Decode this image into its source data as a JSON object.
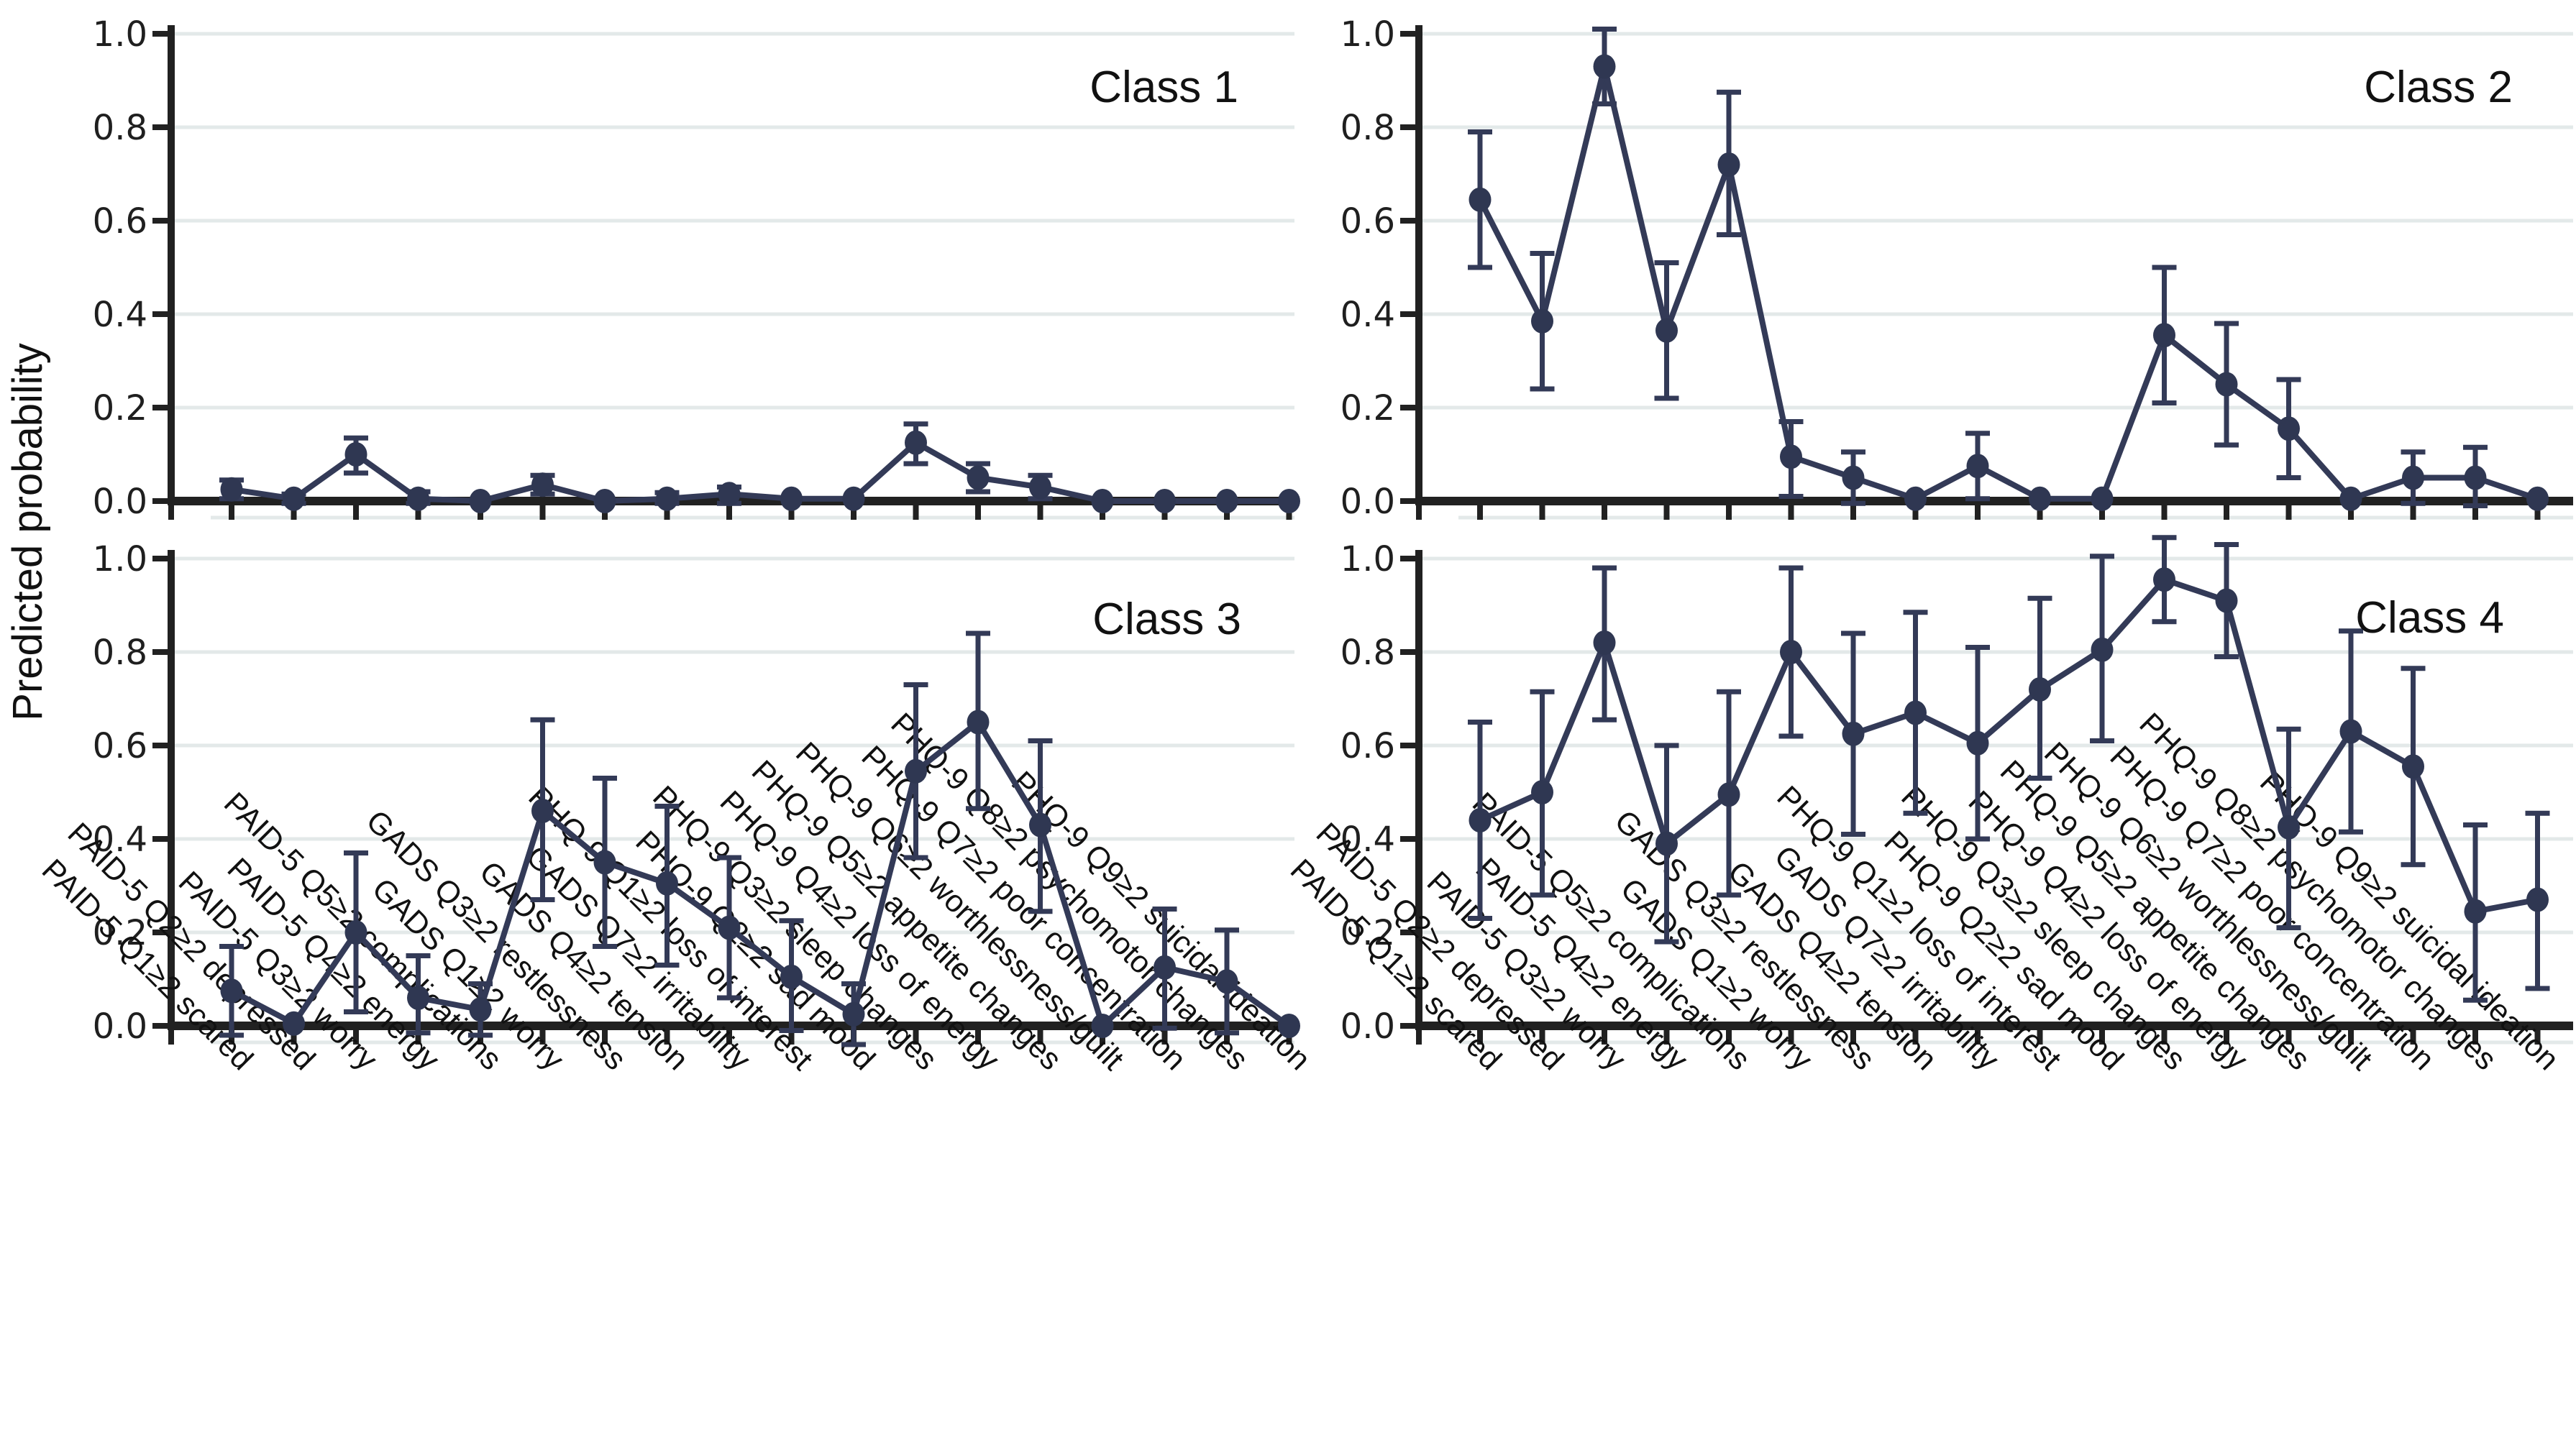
{
  "figure": {
    "ylabel": "Predicted probability",
    "panel_titles": [
      "Class 1",
      "Class 2",
      "Class 3",
      "Class 4"
    ]
  },
  "chart_data": {
    "type": "line",
    "subtype": "multi-panel point-and-errorbar profile plot",
    "title": "",
    "xlabel": "",
    "ylabel": "Predicted probability",
    "ylim": [
      0.0,
      1.0
    ],
    "ytick_labels": [
      "0.0",
      "0.2",
      "0.4",
      "0.6",
      "0.8",
      "1.0"
    ],
    "ytick_values": [
      0.0,
      0.2,
      0.4,
      0.6,
      0.8,
      1.0
    ],
    "grid": true,
    "legend": false,
    "layout_hints": {
      "panels_grid": "2x2",
      "x_tick_rotation": 45,
      "error_bars": true,
      "shared_y_label": true
    },
    "colors": {
      "line": "#333a57",
      "marker": "#2f3752",
      "grid": "#e3e9e9",
      "axis": "#212121",
      "text": "#111111"
    },
    "categories": [
      "PAID-5 Q1≥2 scared",
      "PAID-5 Q2≥2 depressed",
      "PAID-5 Q3≥2 worry",
      "PAID-5 Q4≥2 energy",
      "PAID-5 Q5≥2 complications",
      "GADS Q1≥2 worry",
      "GADS Q3≥2 restlessness",
      "GADS Q4≥2 tension",
      "GADS Q7≥2 irritability",
      "PHQ-9 Q1≥2 loss of interest",
      "PHQ-9 Q2≥2 sad mood",
      "PHQ-9 Q3≥2 sleep changes",
      "PHQ-9 Q4≥2 loss of energy",
      "PHQ-9 Q5≥2 appetite changes",
      "PHQ-9 Q6≥2 worthlessness/guilt",
      "PHQ-9 Q7≥2 poor concentration",
      "PHQ-9 Q8≥2 psychomotor changes",
      "PHQ-9 Q9≥2 suicidal ideation"
    ],
    "panels": [
      {
        "title": "Class 1",
        "values": [
          0.025,
          0.005,
          0.1,
          0.005,
          0.0,
          0.035,
          0.0,
          0.005,
          0.015,
          0.005,
          0.005,
          0.125,
          0.05,
          0.03,
          0.0,
          0.0,
          0.0,
          0.0
        ],
        "ci_low": [
          0.005,
          -0.005,
          0.06,
          -0.005,
          0.0,
          0.015,
          0.0,
          -0.005,
          -0.005,
          -0.003,
          -0.003,
          0.08,
          0.02,
          0.005,
          0.0,
          0.0,
          0.0,
          0.0
        ],
        "ci_high": [
          0.045,
          0.015,
          0.135,
          0.02,
          0.0,
          0.055,
          0.0,
          0.018,
          0.03,
          0.012,
          0.012,
          0.165,
          0.08,
          0.055,
          0.0,
          0.0,
          0.0,
          0.0
        ]
      },
      {
        "title": "Class 2",
        "values": [
          0.645,
          0.385,
          0.93,
          0.365,
          0.72,
          0.095,
          0.05,
          0.005,
          0.075,
          0.005,
          0.005,
          0.355,
          0.25,
          0.155,
          0.005,
          0.05,
          0.05,
          0.005
        ],
        "ci_low": [
          0.5,
          0.24,
          0.85,
          0.22,
          0.57,
          0.01,
          -0.005,
          0.005,
          0.005,
          0.005,
          0.005,
          0.21,
          0.12,
          0.05,
          0.005,
          -0.005,
          -0.01,
          0.005
        ],
        "ci_high": [
          0.79,
          0.53,
          1.01,
          0.51,
          0.875,
          0.17,
          0.105,
          0.005,
          0.145,
          0.005,
          0.005,
          0.5,
          0.38,
          0.26,
          0.005,
          0.105,
          0.115,
          0.005
        ]
      },
      {
        "title": "Class 3",
        "values": [
          0.075,
          0.005,
          0.2,
          0.06,
          0.035,
          0.46,
          0.35,
          0.305,
          0.21,
          0.105,
          0.025,
          0.545,
          0.65,
          0.43,
          0.0,
          0.125,
          0.095,
          0.0
        ],
        "ci_low": [
          -0.02,
          0.005,
          0.03,
          -0.015,
          -0.02,
          0.27,
          0.17,
          0.13,
          0.06,
          -0.01,
          -0.04,
          0.36,
          0.465,
          0.245,
          0.0,
          -0.005,
          -0.015,
          0.0
        ],
        "ci_high": [
          0.17,
          0.005,
          0.37,
          0.15,
          0.09,
          0.655,
          0.53,
          0.47,
          0.36,
          0.225,
          0.09,
          0.73,
          0.84,
          0.61,
          0.0,
          0.25,
          0.205,
          0.0
        ]
      },
      {
        "title": "Class 4",
        "values": [
          0.44,
          0.5,
          0.82,
          0.39,
          0.495,
          0.8,
          0.625,
          0.67,
          0.605,
          0.72,
          0.805,
          0.955,
          0.91,
          0.425,
          0.63,
          0.555,
          0.245,
          0.27
        ],
        "ci_low": [
          0.23,
          0.28,
          0.655,
          0.18,
          0.28,
          0.62,
          0.41,
          0.455,
          0.4,
          0.53,
          0.61,
          0.865,
          0.79,
          0.21,
          0.415,
          0.345,
          0.055,
          0.08
        ],
        "ci_high": [
          0.65,
          0.715,
          0.98,
          0.6,
          0.715,
          0.98,
          0.84,
          0.885,
          0.81,
          0.915,
          1.005,
          1.045,
          1.03,
          0.635,
          0.845,
          0.765,
          0.43,
          0.455
        ]
      }
    ]
  }
}
